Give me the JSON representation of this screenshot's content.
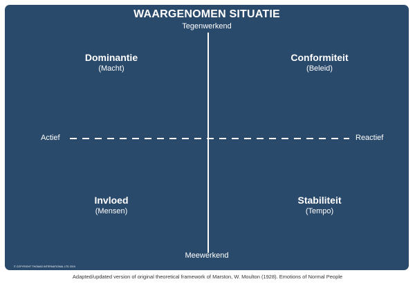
{
  "title": "WAARGENOMEN SITUATIE",
  "axes": {
    "top": "Tegenwerkend",
    "bottom": "Meewerkend",
    "left": "Actief",
    "right": "Reactief"
  },
  "quadrants": {
    "top_left": {
      "title": "Dominantie",
      "subtitle": "(Macht)"
    },
    "top_right": {
      "title": "Conformiteit",
      "subtitle": "(Beleid)"
    },
    "bottom_left": {
      "title": "Invloed",
      "subtitle": "(Mensen)"
    },
    "bottom_right": {
      "title": "Stabiliteit",
      "subtitle": "(Tempo)"
    }
  },
  "copyright": "© COPYRIGHT THOMAS INTERNATIONAL LTD 2019",
  "caption": "Adapted/updated version of original theoretical framework of Marston, W. Moulton (1928). Emotions of Normal People",
  "colors": {
    "panel_background": "#2a4a6b",
    "foreground": "#ffffff",
    "caption_text": "#333333"
  }
}
